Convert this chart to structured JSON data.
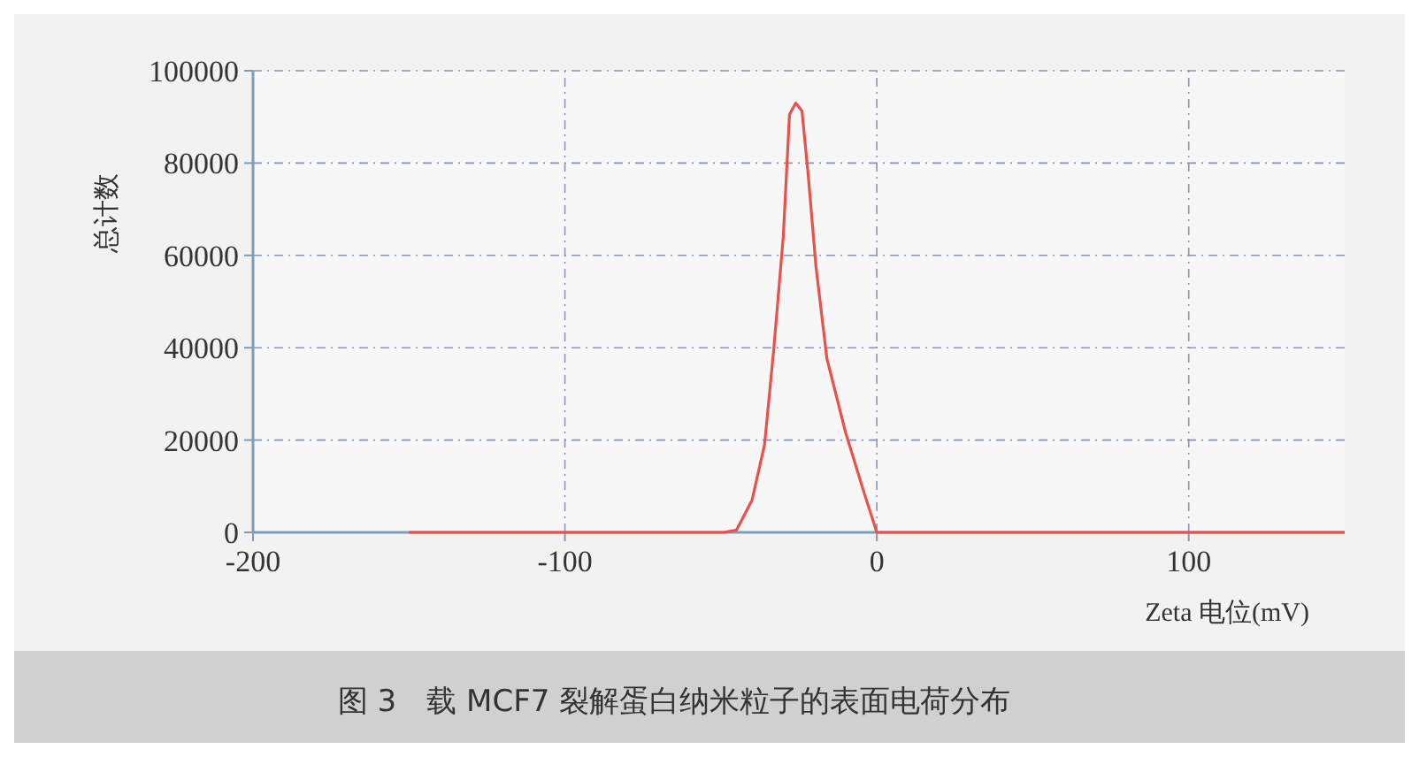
{
  "chart_data": {
    "type": "line",
    "title": "图 3　载 MCF7 裂解蛋白纳米粒子的表面电荷分布",
    "xlabel": "Zeta 电位(mV)",
    "ylabel": "总计数",
    "x": [
      -150,
      -100,
      -50,
      -49,
      -45,
      -40,
      -36,
      -33,
      -30,
      -28,
      -26,
      -24,
      -22,
      -19.5,
      -16,
      -10,
      -4,
      0,
      50,
      100,
      150
    ],
    "values": [
      0,
      0,
      0,
      0,
      500,
      7000,
      19000,
      40000,
      64000,
      90500,
      93000,
      91300,
      77400,
      57500,
      37600,
      21600,
      8400,
      0,
      0,
      0,
      0
    ],
    "color": "#e8524a",
    "xlim": [
      -200,
      150
    ],
    "xticks": [
      -200,
      -100,
      0,
      100
    ],
    "ylim": [
      0,
      100000
    ],
    "yticks": [
      0,
      20000,
      40000,
      60000,
      80000,
      100000
    ],
    "grid": true,
    "line_style": "solid",
    "marker": "none"
  }
}
